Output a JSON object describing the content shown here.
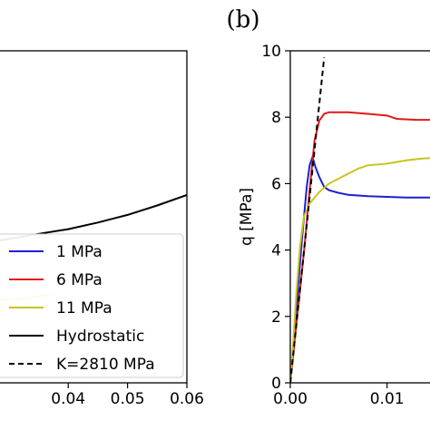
{
  "panel_label": "(b)",
  "colors": {
    "s1": "#1f1fd0",
    "s6": "#e01a1a",
    "s11": "#c8c41e",
    "hydro": "#000000",
    "k": "#000000"
  },
  "chart_data": [
    {
      "type": "line",
      "xlim": [
        0.0285,
        0.06
      ],
      "xticks": [
        "0.04",
        "0.05",
        "0.06"
      ],
      "xtick_values": [
        0.04,
        0.05,
        0.06
      ],
      "legend": {
        "placement": "lower-right",
        "entries": [
          {
            "label": "1 MPa",
            "color": "#1f1fd0",
            "dash": "solid"
          },
          {
            "label": "6 MPa",
            "color": "#e01a1a",
            "dash": "solid"
          },
          {
            "label": "11 MPa",
            "color": "#c8c41e",
            "dash": "solid"
          },
          {
            "label": "Hydrostatic",
            "color": "#000000",
            "dash": "solid"
          },
          {
            "label": "K=2810 MPa",
            "color": "#000000",
            "dash": "dashed"
          }
        ]
      },
      "series": [
        {
          "name": "Hydrostatic",
          "color": "#000000",
          "dash": "solid",
          "points": [
            [
              0.0285,
              0.0
            ],
            [
              0.035,
              0.07
            ],
            [
              0.04,
              0.12
            ],
            [
              0.045,
              0.19
            ],
            [
              0.05,
              0.27
            ],
            [
              0.055,
              0.37
            ],
            [
              0.06,
              0.48
            ]
          ]
        },
        {
          "name": "11 MPa",
          "color": "#c8c41e",
          "dash": "solid",
          "points": [
            [
              0.0285,
              -0.62
            ],
            [
              0.031,
              -0.62
            ],
            [
              0.034,
              -0.6
            ],
            [
              0.036,
              -0.58
            ],
            [
              0.038,
              -0.56
            ]
          ]
        }
      ],
      "ylim": [
        -1.5,
        2.0
      ]
    },
    {
      "type": "line",
      "ylabel": "q [MPa]",
      "xlim": [
        0.0,
        0.015
      ],
      "ylim": [
        0,
        10
      ],
      "xticks": [
        "0.00",
        "0.01"
      ],
      "xtick_values": [
        0.0,
        0.01
      ],
      "yticks": [
        "0",
        "2",
        "4",
        "6",
        "8",
        "10"
      ],
      "ytick_values": [
        0,
        2,
        4,
        6,
        8,
        10
      ],
      "series": [
        {
          "name": "1 MPa",
          "color": "#1f1fd0",
          "dash": "solid",
          "points": [
            [
              0,
              0
            ],
            [
              0.0003,
              1.0
            ],
            [
              0.0007,
              2.5
            ],
            [
              0.0012,
              4.3
            ],
            [
              0.0017,
              5.9
            ],
            [
              0.002,
              6.55
            ],
            [
              0.0023,
              6.8
            ],
            [
              0.0026,
              6.5
            ],
            [
              0.003,
              6.2
            ],
            [
              0.0035,
              5.9
            ],
            [
              0.004,
              5.8
            ],
            [
              0.005,
              5.72
            ],
            [
              0.006,
              5.66
            ],
            [
              0.008,
              5.62
            ],
            [
              0.01,
              5.6
            ],
            [
              0.012,
              5.58
            ],
            [
              0.015,
              5.58
            ]
          ]
        },
        {
          "name": "6 MPa",
          "color": "#e01a1a",
          "dash": "solid",
          "points": [
            [
              0,
              0
            ],
            [
              0.0005,
              1.4
            ],
            [
              0.001,
              2.8
            ],
            [
              0.0015,
              4.2
            ],
            [
              0.002,
              5.8
            ],
            [
              0.0025,
              7.3
            ],
            [
              0.003,
              7.9
            ],
            [
              0.0035,
              8.1
            ],
            [
              0.004,
              8.15
            ],
            [
              0.006,
              8.15
            ],
            [
              0.008,
              8.1
            ],
            [
              0.01,
              8.05
            ],
            [
              0.011,
              7.95
            ],
            [
              0.013,
              7.92
            ],
            [
              0.015,
              7.92
            ]
          ]
        },
        {
          "name": "11 MPa",
          "color": "#c8c41e",
          "dash": "solid",
          "points": [
            [
              0,
              0
            ],
            [
              0.0003,
              1.2
            ],
            [
              0.0006,
              2.6
            ],
            [
              0.001,
              4.1
            ],
            [
              0.0014,
              5.0
            ],
            [
              0.002,
              5.4
            ],
            [
              0.003,
              5.75
            ],
            [
              0.004,
              6.0
            ],
            [
              0.005,
              6.15
            ],
            [
              0.006,
              6.3
            ],
            [
              0.007,
              6.45
            ],
            [
              0.008,
              6.55
            ],
            [
              0.01,
              6.6
            ],
            [
              0.012,
              6.7
            ],
            [
              0.0135,
              6.75
            ],
            [
              0.015,
              6.78
            ]
          ]
        },
        {
          "name": "K=2810 MPa",
          "color": "#000000",
          "dash": "dashed",
          "points": [
            [
              0,
              0
            ],
            [
              0.0035,
              9.8
            ]
          ]
        }
      ]
    }
  ]
}
